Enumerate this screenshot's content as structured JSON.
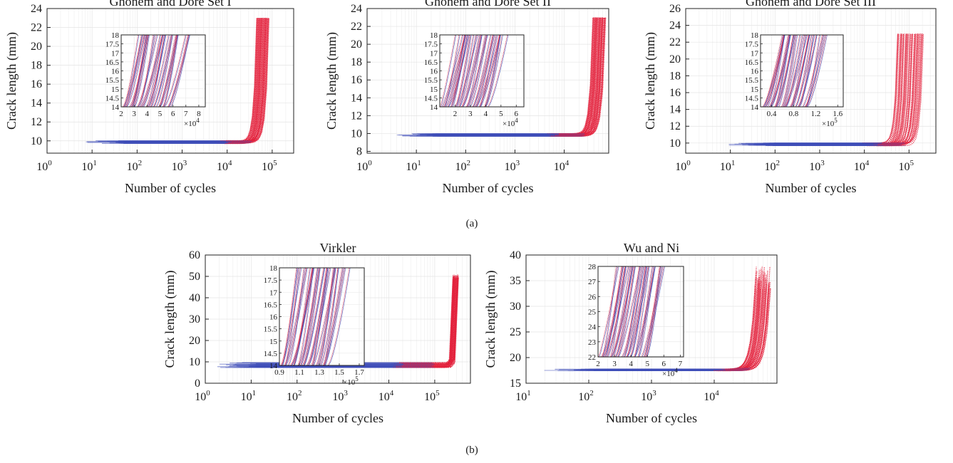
{
  "figure": {
    "label_a": "(a)",
    "label_b": "(b)"
  },
  "colors": {
    "simulated": "#e3213c",
    "measured": "#3f4fb8",
    "grid": "#e4e4e4",
    "axis": "#222222"
  },
  "chart_data": [
    {
      "type": "scatter",
      "title": "Ghonem and Dore Set I",
      "xlabel": "Number of cycles",
      "ylabel": "Crack length (mm)",
      "xscale": "log",
      "xlim": [
        1,
        300000
      ],
      "ylim": [
        8.7,
        24
      ],
      "xticks": [
        {
          "base": "10",
          "exp": "0"
        },
        {
          "base": "10",
          "exp": "1"
        },
        {
          "base": "10",
          "exp": "2"
        },
        {
          "base": "10",
          "exp": "3"
        },
        {
          "base": "10",
          "exp": "4"
        },
        {
          "base": "10",
          "exp": "5"
        }
      ],
      "xtick_values": [
        1,
        10,
        100,
        1000,
        10000,
        100000
      ],
      "yticks": [
        "10",
        "12",
        "14",
        "16",
        "18",
        "20",
        "22",
        "24"
      ],
      "ytick_values": [
        10,
        12,
        14,
        16,
        18,
        20,
        22,
        24
      ],
      "grid": true,
      "curves": {
        "n": 44,
        "a0": 9.85,
        "a_end": 23,
        "N_start": 8,
        "N_end_range": [
          45000,
          85000
        ],
        "p": 7
      },
      "inset": {
        "xlim": [
          20000,
          85000
        ],
        "ylim": [
          14,
          18
        ],
        "xticks": [
          "2",
          "3",
          "4",
          "5",
          "6",
          "7",
          "8"
        ],
        "xtick_values": [
          20000,
          30000,
          40000,
          50000,
          60000,
          70000,
          80000
        ],
        "yticks": [
          "14",
          "14.5",
          "15",
          "15.5",
          "16",
          "16.5",
          "17",
          "17.5",
          "18"
        ],
        "ytick_values": [
          14,
          14.5,
          15,
          15.5,
          16,
          16.5,
          17,
          17.5,
          18
        ],
        "multiplier": {
          "base": "×10",
          "exp": "4"
        }
      }
    },
    {
      "type": "scatter",
      "title": "Ghonem and Dore Set II",
      "xlabel": "Number of cycles",
      "ylabel": "Crack length (mm)",
      "xscale": "log",
      "xlim": [
        1,
        80000
      ],
      "ylim": [
        7.8,
        24
      ],
      "xticks": [
        {
          "base": "10",
          "exp": "0"
        },
        {
          "base": "10",
          "exp": "1"
        },
        {
          "base": "10",
          "exp": "2"
        },
        {
          "base": "10",
          "exp": "3"
        },
        {
          "base": "10",
          "exp": "4"
        }
      ],
      "xtick_values": [
        1,
        10,
        100,
        1000,
        10000
      ],
      "yticks": [
        "8",
        "10",
        "12",
        "14",
        "16",
        "18",
        "20",
        "22",
        "24"
      ],
      "ytick_values": [
        8,
        10,
        12,
        14,
        16,
        18,
        20,
        22,
        24
      ],
      "grid": true,
      "curves": {
        "n": 44,
        "a0": 9.85,
        "a_end": 23,
        "N_start": 3.5,
        "N_end_range": [
          38000,
          70000
        ],
        "p": 7
      },
      "inset": {
        "xlim": [
          10000,
          65000
        ],
        "ylim": [
          14,
          18
        ],
        "xticks": [
          "2",
          "3",
          "4",
          "5",
          "6"
        ],
        "xtick_values": [
          20000,
          30000,
          40000,
          50000,
          60000
        ],
        "yticks": [
          "14",
          "14.5",
          "15",
          "15.5",
          "16",
          "16.5",
          "17",
          "17.5",
          "18"
        ],
        "ytick_values": [
          14,
          14.5,
          15,
          15.5,
          16,
          16.5,
          17,
          17.5,
          18
        ],
        "multiplier": {
          "base": "×10",
          "exp": "4"
        }
      }
    },
    {
      "type": "scatter",
      "title": "Ghonem and Dore Set III",
      "xlabel": "Number of cycles",
      "ylabel": "Crack length (mm)",
      "xscale": "log",
      "xlim": [
        1,
        400000
      ],
      "ylim": [
        8.8,
        26
      ],
      "xticks": [
        {
          "base": "10",
          "exp": "0"
        },
        {
          "base": "10",
          "exp": "1"
        },
        {
          "base": "10",
          "exp": "2"
        },
        {
          "base": "10",
          "exp": "3"
        },
        {
          "base": "10",
          "exp": "4"
        },
        {
          "base": "10",
          "exp": "5"
        }
      ],
      "xtick_values": [
        1,
        10,
        100,
        1000,
        10000,
        100000
      ],
      "yticks": [
        "10",
        "12",
        "14",
        "16",
        "18",
        "20",
        "22",
        "24",
        "26"
      ],
      "ytick_values": [
        10,
        12,
        14,
        16,
        18,
        20,
        22,
        24,
        26
      ],
      "grid": true,
      "curves": {
        "n": 44,
        "a0": 9.85,
        "a_end": 23,
        "N_start": 11,
        "N_end_range": [
          55000,
          210000
        ],
        "p": 7
      },
      "inset": {
        "xlim": [
          20000,
          170000
        ],
        "ylim": [
          14,
          18
        ],
        "xticks": [
          "0.4",
          "0.8",
          "1.2",
          "1.6"
        ],
        "xtick_values": [
          40000,
          80000,
          120000,
          160000
        ],
        "yticks": [
          "14",
          "14.5",
          "15",
          "15.5",
          "16",
          "16.5",
          "17",
          "17.5",
          "18"
        ],
        "ytick_values": [
          14,
          14.5,
          15,
          15.5,
          16,
          16.5,
          17,
          17.5,
          18
        ],
        "multiplier": {
          "base": "×10",
          "exp": "5"
        }
      }
    },
    {
      "type": "scatter",
      "title": "Virkler",
      "xlabel": "Number of cycles",
      "ylabel": "Crack length (mm)",
      "xscale": "log",
      "xlim": [
        1,
        600000
      ],
      "ylim": [
        0,
        60
      ],
      "xticks": [
        {
          "base": "10",
          "exp": "0"
        },
        {
          "base": "10",
          "exp": "1"
        },
        {
          "base": "10",
          "exp": "2"
        },
        {
          "base": "10",
          "exp": "3"
        },
        {
          "base": "10",
          "exp": "4"
        },
        {
          "base": "10",
          "exp": "5"
        }
      ],
      "xtick_values": [
        1,
        10,
        100,
        1000,
        10000,
        100000
      ],
      "yticks": [
        "0",
        "10",
        "20",
        "30",
        "40",
        "50",
        "60"
      ],
      "ytick_values": [
        0,
        10,
        20,
        30,
        40,
        50,
        60
      ],
      "grid": true,
      "curves": {
        "n": 44,
        "a0": 8.5,
        "a_end": 50,
        "N_start": 1.6,
        "N_end_range": [
          250000,
          330000
        ],
        "p": 16
      },
      "inset": {
        "xlim": [
          90000,
          175000
        ],
        "ylim": [
          14,
          18
        ],
        "xticks": [
          "0.9",
          "1.1",
          "1.3",
          "1.5",
          "1.7"
        ],
        "xtick_values": [
          90000,
          110000,
          130000,
          150000,
          170000
        ],
        "yticks": [
          "14",
          "14.5",
          "15",
          "15.5",
          "16",
          "16.5",
          "17",
          "17.5",
          "18"
        ],
        "ytick_values": [
          14,
          14.5,
          15,
          15.5,
          16,
          16.5,
          17,
          17.5,
          18
        ],
        "multiplier": {
          "base": "×10",
          "exp": "5"
        }
      }
    },
    {
      "type": "scatter",
      "title": "Wu and Ni",
      "xlabel": "Number of cycles",
      "ylabel": "Crack length (mm)",
      "xscale": "log",
      "xlim": [
        10,
        100000
      ],
      "ylim": [
        15,
        40
      ],
      "xticks": [
        {
          "base": "10",
          "exp": "1"
        },
        {
          "base": "10",
          "exp": "2"
        },
        {
          "base": "10",
          "exp": "3"
        },
        {
          "base": "10",
          "exp": "4"
        }
      ],
      "xtick_values": [
        10,
        100,
        1000,
        10000
      ],
      "yticks": [
        "15",
        "20",
        "25",
        "30",
        "35",
        "40"
      ],
      "ytick_values": [
        15,
        20,
        25,
        30,
        35,
        40
      ],
      "grid": true,
      "curves": {
        "n": 44,
        "a0": 17.6,
        "a_end": 34,
        "N_start": 24,
        "N_end_range": [
          45000,
          80000
        ],
        "p": 6
      },
      "inset": {
        "xlim": [
          20000,
          72000
        ],
        "ylim": [
          22,
          28
        ],
        "xticks": [
          "2",
          "3",
          "4",
          "5",
          "6",
          "7"
        ],
        "xtick_values": [
          20000,
          30000,
          40000,
          50000,
          60000,
          70000
        ],
        "yticks": [
          "22",
          "23",
          "24",
          "25",
          "26",
          "27",
          "28"
        ],
        "ytick_values": [
          22,
          23,
          24,
          25,
          26,
          27,
          28
        ],
        "multiplier": {
          "base": "×10",
          "exp": "4"
        }
      }
    }
  ]
}
